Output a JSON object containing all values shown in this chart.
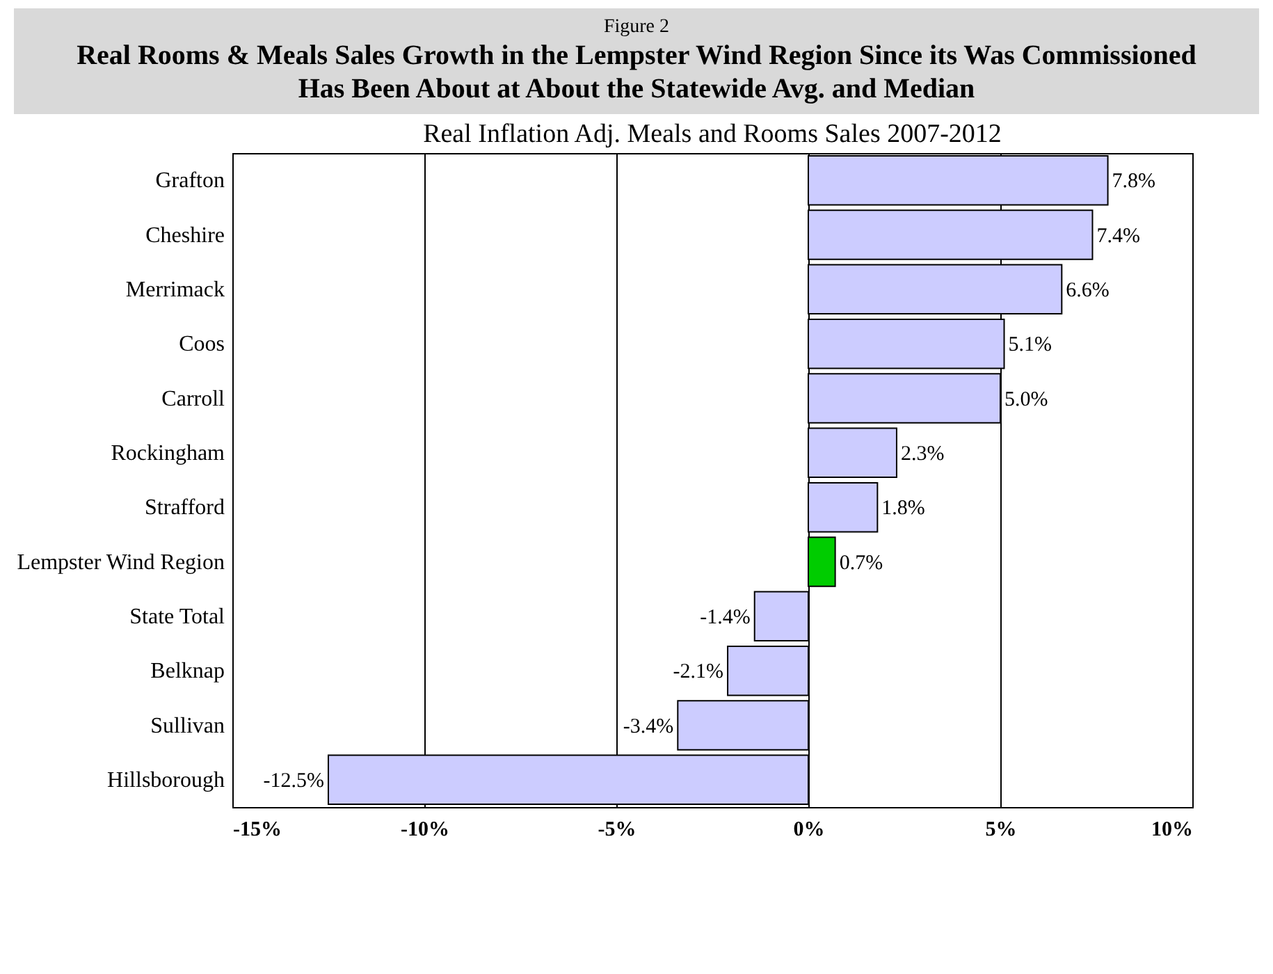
{
  "chart_data": {
    "type": "bar",
    "orientation": "horizontal",
    "title": "Real Rooms & Meals Sales Growth in the Lempster Wind Region Since its Was Commissioned Has Been About at About the Statewide Avg. and Median",
    "subtitle": "Real Inflation Adj. Meals and Rooms Sales 2007-2012",
    "annotations": [
      "Figure 2"
    ],
    "categories": [
      "Grafton",
      "Cheshire",
      "Merrimack",
      "Coos",
      "Carroll",
      "Rockingham",
      "Strafford",
      "Lempster Wind Region",
      "State Total",
      "Belknap",
      "Sullivan",
      "Hillsborough"
    ],
    "values": [
      7.8,
      7.4,
      6.6,
      5.1,
      5.0,
      2.3,
      1.8,
      0.7,
      -1.4,
      -2.1,
      -3.4,
      -12.5
    ],
    "value_labels": [
      "7.8%",
      "7.4%",
      "6.6%",
      "5.1%",
      "5.0%",
      "2.3%",
      "1.8%",
      "0.7%",
      "-1.4%",
      "-2.1%",
      "-3.4%",
      "-12.5%"
    ],
    "colors": [
      "#ccccff",
      "#ccccff",
      "#ccccff",
      "#ccccff",
      "#ccccff",
      "#ccccff",
      "#ccccff",
      "#00cc00",
      "#ccccff",
      "#ccccff",
      "#ccccff",
      "#ccccff"
    ],
    "xlim": [
      -15,
      10
    ],
    "xticks": [
      {
        "value": -15,
        "label": "-15%"
      },
      {
        "value": -10,
        "label": "-10%"
      },
      {
        "value": -5,
        "label": "-5%"
      },
      {
        "value": 0,
        "label": "0%"
      },
      {
        "value": 5,
        "label": "5%"
      },
      {
        "value": 10,
        "label": "10%"
      }
    ],
    "grid": "x"
  }
}
